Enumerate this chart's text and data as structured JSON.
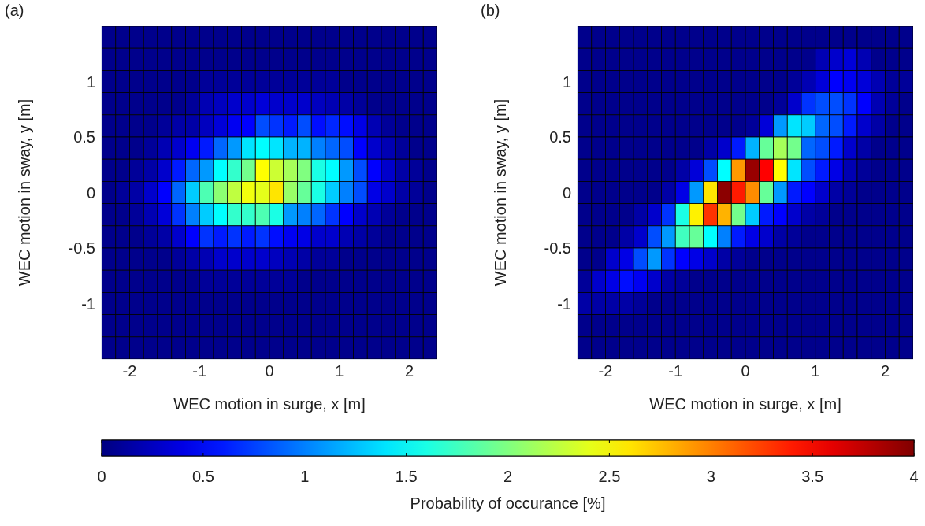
{
  "chart_data": [
    {
      "type": "heatmap",
      "title": "(a)",
      "xlabel": "WEC motion in surge, x [m]",
      "ylabel": "WEC motion in sway, y [m]",
      "x": [
        -2.3,
        -2.1,
        -1.9,
        -1.7,
        -1.5,
        -1.3,
        -1.1,
        -0.9,
        -0.7,
        -0.5,
        -0.3,
        -0.1,
        0.1,
        0.3,
        0.5,
        0.7,
        0.9,
        1.1,
        1.3,
        1.5,
        1.7,
        1.9,
        2.1,
        2.3
      ],
      "y": [
        1.4,
        1.2,
        1.0,
        0.8,
        0.6,
        0.4,
        0.2,
        0,
        -0.2,
        -0.4,
        -0.6,
        -0.8,
        -1.0,
        -1.2,
        -1.4
      ],
      "cells": [
        [
          0.05,
          0.05,
          0.05,
          0.05,
          0.05,
          0.05,
          0.05,
          0.05,
          0.05,
          0.05,
          0.05,
          0.05,
          0.05,
          0.05,
          0.05,
          0.05,
          0.05,
          0.05,
          0.05,
          0.05,
          0.05,
          0.05,
          0.05,
          0.05
        ],
        [
          0.05,
          0.05,
          0.05,
          0.05,
          0.05,
          0.05,
          0.05,
          0.05,
          0.05,
          0.05,
          0.05,
          0.05,
          0.05,
          0.05,
          0.05,
          0.05,
          0.05,
          0.05,
          0.05,
          0.05,
          0.05,
          0.05,
          0.05,
          0.05
        ],
        [
          0.05,
          0.05,
          0.05,
          0.05,
          0.05,
          0.05,
          0.05,
          0.1,
          0.1,
          0.1,
          0.1,
          0.1,
          0.1,
          0.1,
          0.1,
          0.1,
          0.1,
          0.05,
          0.05,
          0.05,
          0.05,
          0.05,
          0.05,
          0.05
        ],
        [
          0.05,
          0.05,
          0.05,
          0.05,
          0.05,
          0.05,
          0.1,
          0.2,
          0.25,
          0.3,
          0.3,
          0.35,
          0.3,
          0.3,
          0.3,
          0.25,
          0.2,
          0.15,
          0.1,
          0.05,
          0.05,
          0.05,
          0.05,
          0.05
        ],
        [
          0.05,
          0.05,
          0.05,
          0.05,
          0.1,
          0.15,
          0.15,
          0.25,
          0.35,
          0.45,
          0.5,
          0.8,
          0.7,
          0.6,
          0.8,
          0.55,
          0.65,
          0.55,
          0.4,
          0.2,
          0.1,
          0.05,
          0.05,
          0.05
        ],
        [
          0.05,
          0.05,
          0.05,
          0.1,
          0.2,
          0.3,
          0.45,
          0.6,
          0.9,
          1.1,
          1.4,
          1.5,
          1.4,
          1.2,
          1.2,
          1.0,
          0.9,
          0.8,
          0.5,
          0.3,
          0.2,
          0.1,
          0.05,
          0.05
        ],
        [
          0.05,
          0.05,
          0.1,
          0.15,
          0.3,
          0.6,
          0.9,
          1.1,
          1.5,
          1.7,
          1.95,
          2.5,
          2.3,
          2.15,
          2.0,
          1.6,
          1.5,
          1.1,
          0.8,
          0.5,
          0.3,
          0.15,
          0.1,
          0.05
        ],
        [
          0.05,
          0.1,
          0.15,
          0.3,
          0.5,
          0.9,
          1.3,
          1.8,
          2.05,
          2.25,
          2.45,
          2.4,
          2.6,
          2.1,
          1.9,
          1.6,
          1.3,
          1.0,
          0.8,
          0.4,
          0.3,
          0.15,
          0.1,
          0.05
        ],
        [
          0.05,
          0.05,
          0.1,
          0.2,
          0.35,
          0.7,
          1.0,
          1.3,
          1.5,
          1.7,
          1.7,
          1.8,
          1.6,
          1.1,
          1.0,
          0.9,
          0.7,
          0.5,
          0.3,
          0.2,
          0.1,
          0.05,
          0.05,
          0.05
        ],
        [
          0.05,
          0.05,
          0.05,
          0.1,
          0.15,
          0.3,
          0.5,
          0.7,
          0.6,
          0.7,
          0.6,
          0.7,
          0.55,
          0.45,
          0.4,
          0.3,
          0.3,
          0.2,
          0.15,
          0.1,
          0.05,
          0.05,
          0.05,
          0.05
        ],
        [
          0.05,
          0.05,
          0.05,
          0.05,
          0.05,
          0.1,
          0.15,
          0.2,
          0.3,
          0.3,
          0.3,
          0.3,
          0.25,
          0.2,
          0.15,
          0.1,
          0.1,
          0.05,
          0.05,
          0.05,
          0.05,
          0.05,
          0.05,
          0.05
        ],
        [
          0.05,
          0.05,
          0.05,
          0.05,
          0.05,
          0.05,
          0.05,
          0.1,
          0.1,
          0.1,
          0.1,
          0.1,
          0.1,
          0.1,
          0.05,
          0.05,
          0.05,
          0.05,
          0.05,
          0.05,
          0.05,
          0.05,
          0.05,
          0.05
        ],
        [
          0.05,
          0.05,
          0.05,
          0.05,
          0.05,
          0.05,
          0.05,
          0.05,
          0.05,
          0.05,
          0.05,
          0.05,
          0.05,
          0.05,
          0.05,
          0.05,
          0.05,
          0.05,
          0.05,
          0.05,
          0.05,
          0.05,
          0.05,
          0.05
        ],
        [
          0.05,
          0.05,
          0.05,
          0.05,
          0.05,
          0.05,
          0.05,
          0.05,
          0.05,
          0.05,
          0.05,
          0.05,
          0.05,
          0.05,
          0.05,
          0.05,
          0.05,
          0.05,
          0.05,
          0.05,
          0.05,
          0.05,
          0.05,
          0.05
        ],
        [
          0.05,
          0.05,
          0.05,
          0.05,
          0.05,
          0.05,
          0.05,
          0.05,
          0.05,
          0.05,
          0.05,
          0.05,
          0.05,
          0.05,
          0.05,
          0.05,
          0.05,
          0.05,
          0.05,
          0.05,
          0.05,
          0.05,
          0.05,
          0.05
        ]
      ],
      "xlim": [
        -2.4,
        2.4
      ],
      "ylim": [
        -1.5,
        1.5
      ],
      "xticks": [
        -2,
        -1,
        0,
        1,
        2
      ],
      "yticks": [
        -1,
        -0.5,
        0,
        0.5,
        1
      ],
      "clim": [
        0,
        4
      ],
      "cticks": [
        0,
        1,
        2,
        3,
        4
      ]
    },
    {
      "type": "heatmap",
      "title": "(b)",
      "xlabel": "WEC motion in surge, x [m]",
      "ylabel": "WEC motion in sway, y [m]",
      "x": [
        -2.3,
        -2.1,
        -1.9,
        -1.7,
        -1.5,
        -1.3,
        -1.1,
        -0.9,
        -0.7,
        -0.5,
        -0.3,
        -0.1,
        0.1,
        0.3,
        0.5,
        0.7,
        0.9,
        1.1,
        1.3,
        1.5,
        1.7,
        1.9,
        2.1,
        2.3
      ],
      "y": [
        1.4,
        1.2,
        1.0,
        0.8,
        0.6,
        0.4,
        0.2,
        0,
        -0.2,
        -0.4,
        -0.6,
        -0.8,
        -1.0,
        -1.2,
        -1.4
      ],
      "cells": [
        [
          0.05,
          0.05,
          0.05,
          0.05,
          0.05,
          0.05,
          0.05,
          0.05,
          0.05,
          0.05,
          0.05,
          0.05,
          0.05,
          0.05,
          0.05,
          0.05,
          0.05,
          0.05,
          0.05,
          0.05,
          0.05,
          0.05,
          0.05,
          0.05
        ],
        [
          0.05,
          0.05,
          0.05,
          0.05,
          0.05,
          0.05,
          0.05,
          0.05,
          0.05,
          0.05,
          0.05,
          0.05,
          0.05,
          0.05,
          0.05,
          0.05,
          0.05,
          0.2,
          0.3,
          0.35,
          0.2,
          0.05,
          0.05,
          0.05
        ],
        [
          0.05,
          0.05,
          0.05,
          0.05,
          0.05,
          0.05,
          0.05,
          0.05,
          0.05,
          0.05,
          0.05,
          0.05,
          0.05,
          0.05,
          0.05,
          0.1,
          0.2,
          0.35,
          0.5,
          0.45,
          0.35,
          0.2,
          0.1,
          0.1
        ],
        [
          0.05,
          0.05,
          0.05,
          0.05,
          0.05,
          0.05,
          0.05,
          0.05,
          0.05,
          0.05,
          0.05,
          0.05,
          0.05,
          0.05,
          0.1,
          0.3,
          0.7,
          0.8,
          0.8,
          0.7,
          0.5,
          0.2,
          0.1,
          0.05
        ],
        [
          0.05,
          0.05,
          0.05,
          0.05,
          0.05,
          0.05,
          0.05,
          0.05,
          0.05,
          0.05,
          0.05,
          0.05,
          0.1,
          0.35,
          1.1,
          1.4,
          1.3,
          0.9,
          0.8,
          0.6,
          0.3,
          0.15,
          0.05,
          0.05
        ],
        [
          0.05,
          0.05,
          0.05,
          0.05,
          0.05,
          0.05,
          0.05,
          0.05,
          0.05,
          0.15,
          0.3,
          0.6,
          1.2,
          1.9,
          2.15,
          1.95,
          0.9,
          0.8,
          0.6,
          0.3,
          0.15,
          0.05,
          0.05,
          0.05
        ],
        [
          0.05,
          0.05,
          0.05,
          0.05,
          0.05,
          0.05,
          0.05,
          0.15,
          0.35,
          0.8,
          1.5,
          2.9,
          3.9,
          3.5,
          2.5,
          1.4,
          0.8,
          0.6,
          0.4,
          0.2,
          0.1,
          0.05,
          0.05,
          0.05
        ],
        [
          0.05,
          0.05,
          0.05,
          0.05,
          0.05,
          0.05,
          0.15,
          0.4,
          1.1,
          2.6,
          3.95,
          3.4,
          2.95,
          1.9,
          1.1,
          0.6,
          0.5,
          0.3,
          0.15,
          0.1,
          0.05,
          0.05,
          0.05,
          0.05
        ],
        [
          0.05,
          0.05,
          0.05,
          0.05,
          0.15,
          0.3,
          0.7,
          1.6,
          2.55,
          3.3,
          2.8,
          1.95,
          1.3,
          0.6,
          0.5,
          0.3,
          0.15,
          0.1,
          0.05,
          0.05,
          0.05,
          0.05,
          0.05,
          0.05
        ],
        [
          0.05,
          0.05,
          0.05,
          0.15,
          0.3,
          0.8,
          1.1,
          1.75,
          1.9,
          1.5,
          1.0,
          0.6,
          0.4,
          0.3,
          0.15,
          0.1,
          0.05,
          0.05,
          0.05,
          0.05,
          0.05,
          0.05,
          0.05,
          0.05
        ],
        [
          0.05,
          0.05,
          0.3,
          0.4,
          0.8,
          1.1,
          0.7,
          0.5,
          0.4,
          0.3,
          0.15,
          0.1,
          0.05,
          0.05,
          0.05,
          0.05,
          0.05,
          0.05,
          0.05,
          0.05,
          0.05,
          0.05,
          0.05,
          0.05
        ],
        [
          0.1,
          0.3,
          0.4,
          0.55,
          0.45,
          0.3,
          0.15,
          0.1,
          0.05,
          0.05,
          0.05,
          0.05,
          0.05,
          0.05,
          0.05,
          0.05,
          0.05,
          0.05,
          0.05,
          0.05,
          0.05,
          0.05,
          0.05,
          0.05
        ],
        [
          0.15,
          0.15,
          0.15,
          0.15,
          0.1,
          0.05,
          0.05,
          0.05,
          0.05,
          0.05,
          0.05,
          0.05,
          0.05,
          0.05,
          0.05,
          0.05,
          0.05,
          0.05,
          0.05,
          0.05,
          0.05,
          0.05,
          0.05,
          0.05
        ],
        [
          0.05,
          0.05,
          0.05,
          0.05,
          0.05,
          0.05,
          0.05,
          0.05,
          0.05,
          0.05,
          0.05,
          0.05,
          0.05,
          0.05,
          0.05,
          0.05,
          0.05,
          0.05,
          0.05,
          0.05,
          0.05,
          0.05,
          0.05,
          0.05
        ],
        [
          0.05,
          0.05,
          0.05,
          0.05,
          0.05,
          0.05,
          0.05,
          0.05,
          0.05,
          0.05,
          0.05,
          0.05,
          0.05,
          0.05,
          0.05,
          0.05,
          0.05,
          0.05,
          0.05,
          0.05,
          0.05,
          0.05,
          0.05,
          0.05
        ]
      ],
      "xlim": [
        -2.4,
        2.4
      ],
      "ylim": [
        -1.5,
        1.5
      ],
      "xticks": [
        -2,
        -1,
        0,
        1,
        2
      ],
      "yticks": [
        -1,
        -0.5,
        0,
        0.5,
        1
      ],
      "clim": [
        0,
        4
      ],
      "cticks": [
        0.5,
        1.5,
        2.5,
        3.5
      ],
      "clabel": "Probability of occurance [%]"
    }
  ]
}
